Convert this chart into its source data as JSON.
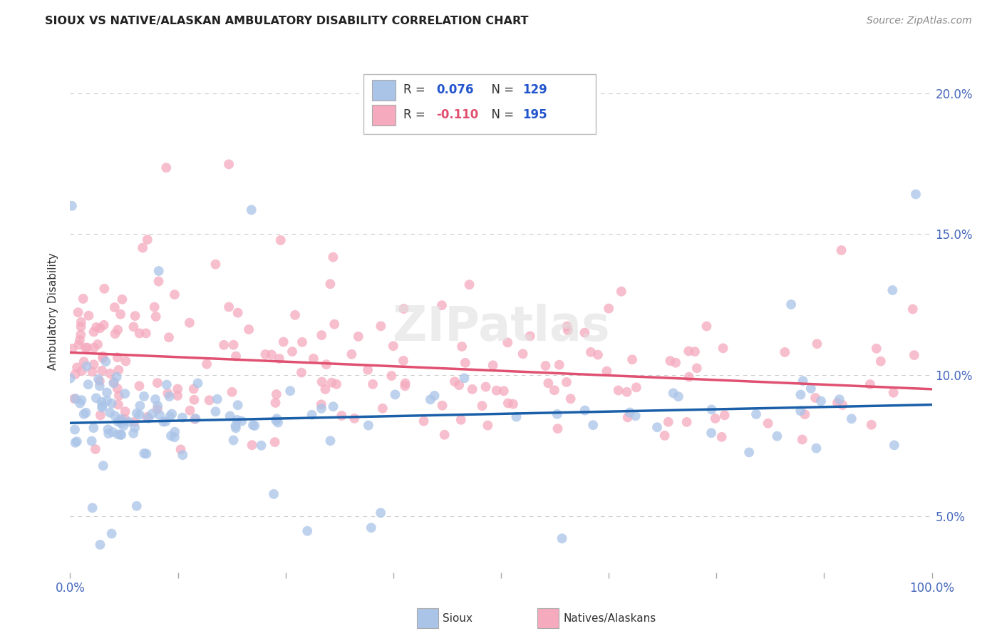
{
  "title": "SIOUX VS NATIVE/ALASKAN AMBULATORY DISABILITY CORRELATION CHART",
  "source": "Source: ZipAtlas.com",
  "ylabel": "Ambulatory Disability",
  "sioux_color": "#aac4e8",
  "sioux_line_color": "#1a5fa8",
  "native_color": "#f5aabe",
  "native_line_color": "#e05070",
  "sioux_R": 0.076,
  "sioux_N": 129,
  "native_R": -0.11,
  "native_N": 195,
  "legend_label_sioux": "Sioux",
  "legend_label_native": "Natives/Alaskans",
  "watermark": "ZIPatlas",
  "background_color": "#ffffff",
  "xmin": 0.0,
  "xmax": 100.0,
  "ymin": 3.0,
  "ymax": 21.5,
  "sioux_line_y0": 8.3,
  "sioux_line_y1": 8.95,
  "native_line_y0": 10.8,
  "native_line_y1": 9.5,
  "r_label_color": "#2255cc",
  "r_neg_color": "#e05070",
  "n_label_color": "#2255cc",
  "text_color": "#333333",
  "tick_label_color": "#4466bb",
  "grid_color": "#cccccc",
  "source_color": "#888888",
  "title_color": "#222222",
  "marker_size": 100,
  "marker_alpha": 0.75
}
